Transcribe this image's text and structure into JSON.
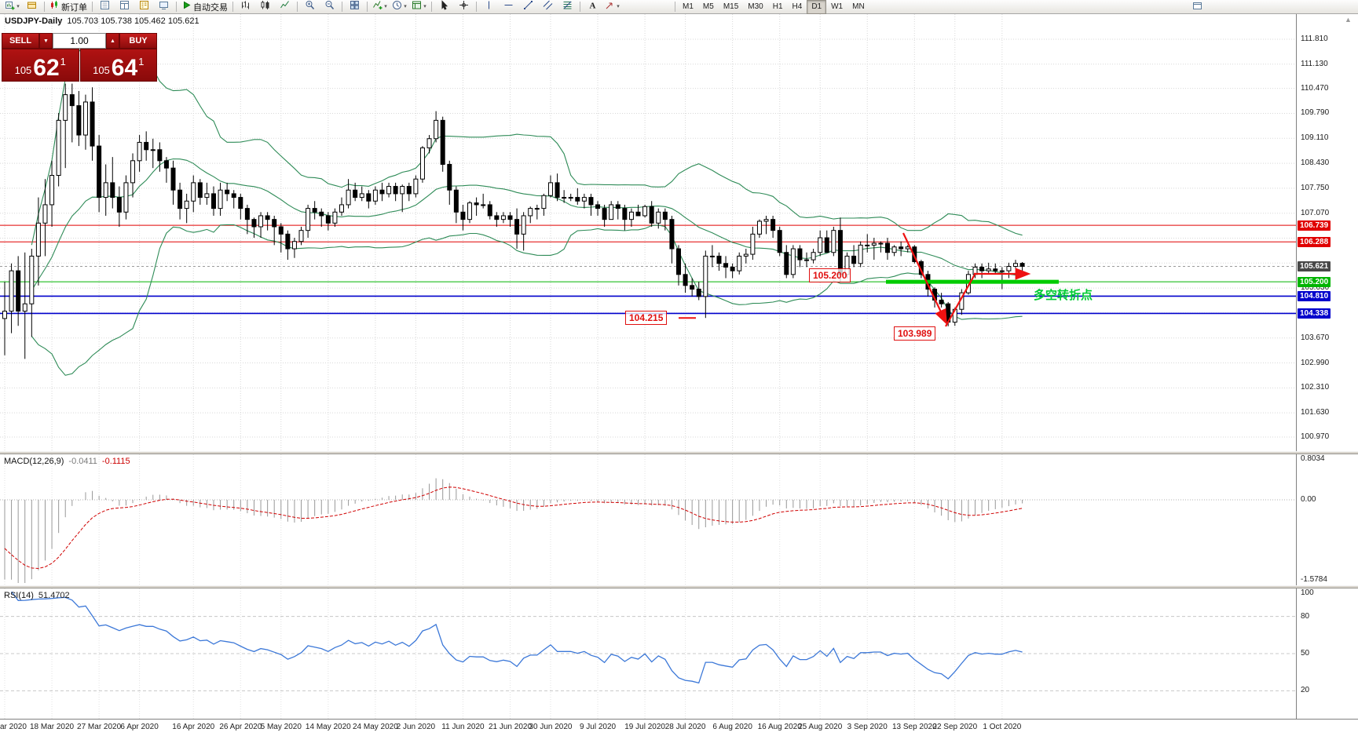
{
  "toolbar": {
    "groups": [
      {
        "items": [
          {
            "name": "new-chart",
            "icon": "new-chart",
            "caret": true
          },
          {
            "name": "profiles",
            "icon": "profiles"
          }
        ]
      },
      {
        "items": [
          {
            "name": "new-order",
            "icon": "new-order",
            "label": "新订单"
          }
        ]
      },
      {
        "items": [
          {
            "name": "market-watch",
            "icon": "market-watch"
          },
          {
            "name": "data-window",
            "icon": "data-window"
          },
          {
            "name": "navigator",
            "icon": "navigator"
          },
          {
            "name": "terminal",
            "icon": "terminal"
          }
        ]
      },
      {
        "items": [
          {
            "name": "auto-trading",
            "icon": "auto-trading",
            "label": "自动交易"
          }
        ]
      },
      {
        "items": [
          {
            "name": "bar-chart-mode",
            "icon": "bar-type"
          },
          {
            "name": "candlestick-mode",
            "icon": "candle-type"
          },
          {
            "name": "line-chart-mode",
            "icon": "line-type"
          }
        ]
      },
      {
        "items": [
          {
            "name": "zoom-in",
            "icon": "zoom-in"
          },
          {
            "name": "zoom-out",
            "icon": "zoom-out"
          }
        ]
      },
      {
        "items": [
          {
            "name": "tile-windows",
            "icon": "tile"
          }
        ]
      },
      {
        "items": [
          {
            "name": "indicators",
            "icon": "indicators",
            "caret": true
          },
          {
            "name": "periods",
            "icon": "clock",
            "caret": true
          },
          {
            "name": "templates",
            "icon": "templates",
            "caret": true
          }
        ]
      },
      {
        "items": [
          {
            "name": "cursor",
            "icon": "cursor"
          },
          {
            "name": "crosshair",
            "icon": "crosshair"
          }
        ]
      },
      {
        "items": [
          {
            "name": "vertical-line",
            "icon": "vline"
          },
          {
            "name": "horizontal-line",
            "icon": "hline"
          },
          {
            "name": "trendline",
            "icon": "trendline"
          },
          {
            "name": "equidistant-channel",
            "icon": "channel"
          },
          {
            "name": "fibonacci",
            "icon": "fibonacci"
          }
        ]
      },
      {
        "items": [
          {
            "name": "text",
            "icon": "text"
          },
          {
            "name": "arrows",
            "icon": "arrows",
            "caret": true
          }
        ]
      }
    ],
    "timeframes": [
      "M1",
      "M5",
      "M15",
      "M30",
      "H1",
      "H4",
      "D1",
      "W1",
      "MN"
    ],
    "active_timeframe": "D1"
  },
  "chart_header": {
    "symbol_period": "USDJPY-Daily",
    "ohlc": "105.703 105.738 105.462 105.621"
  },
  "trade_panel": {
    "sell_label": "SELL",
    "buy_label": "BUY",
    "volume": "1.00",
    "sell_price": {
      "prefix": "105",
      "main": "62",
      "pip": "1"
    },
    "buy_price": {
      "prefix": "105",
      "main": "64",
      "pip": "1"
    }
  },
  "price_axis": {
    "labels": [
      "111.810",
      "111.130",
      "110.470",
      "109.790",
      "109.110",
      "108.430",
      "107.750",
      "107.070",
      "105.030",
      "103.670",
      "102.990",
      "102.310",
      "101.630",
      "100.970"
    ],
    "hidden_grid": [
      106.39,
      105.71,
      104.35
    ],
    "badges": [
      {
        "text": "106.739",
        "color": "#e00000"
      },
      {
        "text": "106.288",
        "color": "#e00000"
      },
      {
        "text": "105.621",
        "color": "#484848"
      },
      {
        "text": "105.200",
        "color": "#00b400"
      },
      {
        "text": "104.810",
        "color": "#0000cc"
      },
      {
        "text": "104.338",
        "color": "#0000cc"
      }
    ]
  },
  "levels": [
    {
      "price": 106.739,
      "color": "#e00000",
      "width": 1
    },
    {
      "price": 106.288,
      "color": "#e00000",
      "width": 1
    },
    {
      "price": 105.2,
      "color": "#00b400",
      "width": 1
    },
    {
      "price": 104.81,
      "color": "#0000cc",
      "width": 1.6
    },
    {
      "price": 104.338,
      "color": "#0000cc",
      "width": 1.6
    }
  ],
  "current_price": 105.621,
  "annotations": {
    "box_105200": "105.200",
    "box_104215": "104.215",
    "box_103989": "103.989",
    "turning_point_text": "多空转折点",
    "highlight_color": "#00cc00",
    "arrow_color": "#ee1111"
  },
  "time_axis": {
    "labels": [
      {
        "text": "ar 2020",
        "i": 0,
        "align": "left"
      },
      {
        "text": "18 Mar 2020",
        "i": 7
      },
      {
        "text": "27 Mar 2020",
        "i": 14
      },
      {
        "text": "6 Apr 2020",
        "i": 20
      },
      {
        "text": "16 Apr 2020",
        "i": 28
      },
      {
        "text": "26 Apr 2020",
        "i": 35
      },
      {
        "text": "5 May 2020",
        "i": 41
      },
      {
        "text": "14 May 2020",
        "i": 48
      },
      {
        "text": "24 May 2020",
        "i": 55
      },
      {
        "text": "2 Jun 2020",
        "i": 61
      },
      {
        "text": "11 Jun 2020",
        "i": 68
      },
      {
        "text": "21 Jun 2020",
        "i": 75
      },
      {
        "text": "30 Jun 2020",
        "i": 81
      },
      {
        "text": "9 Jul 2020",
        "i": 88
      },
      {
        "text": "19 Jul 2020",
        "i": 95
      },
      {
        "text": "28 Jul 2020",
        "i": 101
      },
      {
        "text": "6 Aug 2020",
        "i": 108
      },
      {
        "text": "16 Aug 2020",
        "i": 115
      },
      {
        "text": "25 Aug 2020",
        "i": 121
      },
      {
        "text": "3 Sep 2020",
        "i": 128
      },
      {
        "text": "13 Sep 2020",
        "i": 135
      },
      {
        "text": "22 Sep 2020",
        "i": 141
      },
      {
        "text": "1 Oct 2020",
        "i": 148
      }
    ]
  },
  "macd": {
    "name": "MACD(12,26,9)",
    "value_main": "-0.0411",
    "value_signal": "-0.1115",
    "scale_top": "0.8034",
    "scale_zero": "0.00",
    "scale_bottom": "-1.5784",
    "hist_color": "#989898",
    "signal_color": "#d00000"
  },
  "rsi": {
    "name": "RSI(14)",
    "value": "51.4702",
    "levels": [
      "100",
      "80",
      "50",
      "20"
    ],
    "line_color": "#3c78d8"
  },
  "chart_data": {
    "type": "candlestick",
    "symbol": "USDJPY",
    "timeframe": "Daily",
    "band_color": "#2e8b57",
    "candles": [
      [
        104.2,
        105.2,
        103.2,
        104.4
      ],
      [
        104.4,
        105.7,
        103.8,
        105.5
      ],
      [
        105.5,
        105.9,
        104.0,
        104.4
      ],
      [
        104.4,
        106.0,
        103.1,
        104.6
      ],
      [
        104.6,
        106.1,
        103.7,
        105.9
      ],
      [
        105.9,
        107.5,
        105.1,
        106.8
      ],
      [
        106.8,
        108.0,
        105.9,
        107.3
      ],
      [
        107.3,
        108.5,
        106.7,
        108.1
      ],
      [
        108.1,
        109.8,
        107.8,
        109.6
      ],
      [
        109.6,
        110.6,
        108.3,
        110.3
      ],
      [
        110.3,
        110.6,
        109.0,
        110.0
      ],
      [
        110.0,
        110.4,
        108.9,
        109.2
      ],
      [
        109.2,
        110.3,
        108.8,
        110.1
      ],
      [
        110.1,
        110.5,
        108.5,
        108.9
      ],
      [
        108.9,
        109.2,
        107.1,
        107.5
      ],
      [
        107.5,
        108.4,
        107.0,
        107.9
      ],
      [
        107.9,
        108.6,
        107.2,
        107.5
      ],
      [
        107.5,
        107.8,
        106.7,
        107.1
      ],
      [
        107.1,
        108.1,
        106.9,
        107.9
      ],
      [
        107.9,
        108.7,
        107.5,
        108.5
      ],
      [
        108.5,
        109.2,
        108.2,
        109.0
      ],
      [
        109.0,
        109.3,
        108.5,
        108.8
      ],
      [
        108.8,
        109.1,
        108.3,
        108.8
      ],
      [
        108.8,
        109.0,
        108.2,
        108.5
      ],
      [
        108.5,
        108.6,
        107.9,
        108.3
      ],
      [
        108.3,
        108.5,
        107.3,
        107.7
      ],
      [
        107.7,
        107.9,
        106.9,
        107.2
      ],
      [
        107.2,
        107.6,
        106.8,
        107.4
      ],
      [
        107.4,
        108.1,
        107.1,
        107.9
      ],
      [
        107.9,
        108.0,
        107.3,
        107.5
      ],
      [
        107.5,
        107.9,
        107.3,
        107.6
      ],
      [
        107.6,
        107.8,
        107.0,
        107.2
      ],
      [
        107.2,
        107.9,
        107.0,
        107.7
      ],
      [
        107.7,
        107.9,
        107.4,
        107.6
      ],
      [
        107.6,
        107.7,
        107.2,
        107.5
      ],
      [
        107.5,
        107.6,
        106.9,
        107.2
      ],
      [
        107.2,
        107.3,
        106.5,
        106.9
      ],
      [
        106.9,
        106.95,
        106.4,
        106.7
      ],
      [
        106.7,
        107.1,
        106.4,
        107.0
      ],
      [
        107.0,
        107.1,
        106.6,
        106.9
      ],
      [
        106.9,
        107.0,
        106.2,
        106.7
      ],
      [
        106.7,
        106.8,
        106.0,
        106.5
      ],
      [
        106.5,
        106.6,
        105.8,
        106.1
      ],
      [
        106.1,
        106.4,
        105.85,
        106.3
      ],
      [
        106.3,
        106.7,
        106.2,
        106.6
      ],
      [
        106.6,
        107.3,
        106.4,
        107.2
      ],
      [
        107.2,
        107.4,
        106.9,
        107.1
      ],
      [
        107.1,
        107.2,
        106.7,
        107.0
      ],
      [
        107.0,
        107.1,
        106.6,
        106.8
      ],
      [
        106.8,
        107.2,
        106.7,
        107.1
      ],
      [
        107.1,
        107.5,
        107.0,
        107.3
      ],
      [
        107.3,
        108.0,
        107.2,
        107.7
      ],
      [
        107.7,
        107.9,
        107.4,
        107.5
      ],
      [
        107.5,
        107.8,
        107.4,
        107.6
      ],
      [
        107.6,
        107.7,
        107.2,
        107.4
      ],
      [
        107.4,
        107.8,
        107.3,
        107.7
      ],
      [
        107.7,
        107.9,
        107.4,
        107.6
      ],
      [
        107.6,
        107.9,
        107.5,
        107.8
      ],
      [
        107.8,
        107.9,
        107.4,
        107.6
      ],
      [
        107.6,
        107.85,
        107.1,
        107.8
      ],
      [
        107.8,
        107.9,
        107.4,
        107.6
      ],
      [
        107.6,
        108.1,
        107.5,
        108.0
      ],
      [
        108.0,
        108.9,
        107.9,
        108.85
      ],
      [
        108.85,
        109.2,
        108.7,
        109.1
      ],
      [
        109.1,
        109.85,
        109.0,
        109.6
      ],
      [
        109.6,
        109.7,
        108.2,
        108.4
      ],
      [
        108.4,
        108.5,
        107.3,
        107.7
      ],
      [
        107.7,
        107.8,
        106.8,
        107.1
      ],
      [
        107.1,
        107.3,
        106.6,
        106.9
      ],
      [
        106.9,
        107.4,
        106.8,
        107.35
      ],
      [
        107.35,
        107.5,
        107.0,
        107.3
      ],
      [
        107.3,
        107.6,
        107.2,
        107.3
      ],
      [
        107.3,
        107.4,
        106.9,
        107.0
      ],
      [
        107.0,
        107.1,
        106.7,
        106.9
      ],
      [
        106.9,
        107.1,
        106.8,
        107.0
      ],
      [
        107.0,
        107.1,
        106.7,
        106.9
      ],
      [
        106.9,
        107.2,
        106.1,
        106.5
      ],
      [
        106.5,
        107.1,
        106.05,
        107.0
      ],
      [
        107.0,
        107.25,
        106.8,
        107.2
      ],
      [
        107.2,
        107.3,
        106.9,
        107.2
      ],
      [
        107.2,
        107.6,
        107.0,
        107.55
      ],
      [
        107.55,
        108.1,
        107.5,
        107.9
      ],
      [
        107.9,
        108.15,
        107.4,
        107.5
      ],
      [
        107.5,
        107.7,
        107.35,
        107.5
      ],
      [
        107.5,
        107.6,
        107.4,
        107.5
      ],
      [
        107.5,
        107.75,
        107.3,
        107.4
      ],
      [
        107.4,
        107.6,
        107.2,
        107.5
      ],
      [
        107.5,
        107.6,
        107.0,
        107.3
      ],
      [
        107.3,
        107.4,
        107.0,
        107.2
      ],
      [
        107.2,
        107.3,
        106.7,
        106.9
      ],
      [
        106.9,
        107.4,
        106.9,
        107.3
      ],
      [
        107.3,
        107.4,
        106.9,
        107.2
      ],
      [
        107.2,
        107.3,
        106.6,
        106.9
      ],
      [
        106.9,
        107.2,
        106.7,
        107.1
      ],
      [
        107.1,
        107.3,
        107.0,
        107.0
      ],
      [
        107.0,
        107.3,
        106.95,
        107.25
      ],
      [
        107.25,
        107.4,
        106.7,
        106.8
      ],
      [
        106.8,
        107.2,
        106.65,
        107.1
      ],
      [
        107.1,
        107.2,
        106.6,
        106.9
      ],
      [
        106.9,
        107.0,
        105.7,
        106.1
      ],
      [
        106.1,
        106.2,
        105.1,
        105.4
      ],
      [
        105.4,
        105.7,
        104.9,
        105.1
      ],
      [
        105.1,
        105.3,
        104.8,
        105.0
      ],
      [
        105.0,
        105.2,
        104.7,
        104.8
      ],
      [
        104.8,
        106.05,
        104.215,
        105.9
      ],
      [
        105.9,
        106.2,
        105.6,
        105.9
      ],
      [
        105.9,
        106.0,
        105.5,
        105.7
      ],
      [
        105.7,
        105.9,
        105.3,
        105.6
      ],
      [
        105.6,
        105.7,
        105.3,
        105.5
      ],
      [
        105.5,
        106.0,
        105.4,
        105.9
      ],
      [
        105.9,
        106.1,
        105.7,
        105.95
      ],
      [
        105.95,
        106.7,
        105.8,
        106.5
      ],
      [
        106.5,
        106.9,
        106.4,
        106.85
      ],
      [
        106.85,
        107.0,
        106.5,
        106.9
      ],
      [
        106.9,
        107.0,
        106.4,
        106.6
      ],
      [
        106.6,
        106.7,
        105.9,
        106.0
      ],
      [
        106.0,
        106.2,
        105.3,
        105.4
      ],
      [
        105.4,
        106.2,
        105.3,
        106.1
      ],
      [
        106.1,
        106.2,
        105.6,
        105.8
      ],
      [
        105.8,
        106.0,
        105.6,
        105.8
      ],
      [
        105.8,
        106.1,
        105.7,
        106.0
      ],
      [
        106.0,
        106.6,
        105.9,
        106.4
      ],
      [
        106.4,
        106.6,
        106.0,
        106.0
      ],
      [
        106.0,
        106.7,
        105.9,
        106.6
      ],
      [
        106.6,
        106.95,
        105.2,
        105.4
      ],
      [
        105.4,
        106.0,
        105.3,
        105.9
      ],
      [
        105.9,
        106.2,
        105.6,
        105.7
      ],
      [
        105.7,
        106.3,
        105.6,
        106.2
      ],
      [
        106.2,
        106.5,
        106.0,
        106.2
      ],
      [
        106.2,
        106.4,
        105.8,
        106.25
      ],
      [
        106.25,
        106.3,
        106.0,
        106.25
      ],
      [
        106.25,
        106.4,
        105.8,
        106.0
      ],
      [
        106.0,
        106.2,
        105.9,
        106.15
      ],
      [
        106.15,
        106.3,
        105.9,
        106.1
      ],
      [
        106.1,
        106.2,
        106.0,
        106.15
      ],
      [
        106.15,
        106.2,
        105.7,
        105.75
      ],
      [
        105.75,
        105.8,
        105.3,
        105.4
      ],
      [
        105.4,
        105.5,
        104.8,
        105.0
      ],
      [
        105.0,
        105.05,
        104.5,
        104.7
      ],
      [
        104.7,
        104.9,
        104.5,
        104.6
      ],
      [
        104.6,
        104.65,
        103.989,
        104.1
      ],
      [
        104.1,
        104.5,
        104.0,
        104.45
      ],
      [
        104.45,
        105.0,
        104.3,
        104.9
      ],
      [
        104.9,
        105.5,
        104.85,
        105.4
      ],
      [
        105.4,
        105.7,
        105.3,
        105.6
      ],
      [
        105.6,
        105.7,
        105.3,
        105.5
      ],
      [
        105.5,
        105.72,
        105.4,
        105.55
      ],
      [
        105.55,
        105.7,
        105.4,
        105.5
      ],
      [
        105.5,
        105.6,
        105.0,
        105.5
      ],
      [
        105.5,
        105.72,
        105.3,
        105.62
      ],
      [
        105.62,
        105.8,
        105.55,
        105.7
      ],
      [
        105.703,
        105.738,
        105.462,
        105.621
      ]
    ]
  }
}
